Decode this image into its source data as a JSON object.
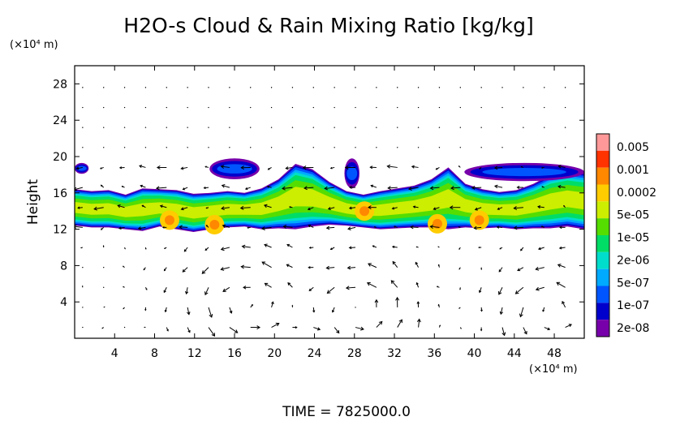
{
  "chart_data": {
    "type": "heatmap",
    "title": "H2O-s Cloud & Rain Mixing Ratio [kg/kg]",
    "ylabel": "Height",
    "xlabel": "",
    "y_unit": "(×10⁴ m)",
    "x_unit": "(×10⁴ m)",
    "xlim": [
      0,
      51
    ],
    "ylim": [
      0,
      30
    ],
    "xticks": [
      "4",
      "8",
      "12",
      "16",
      "20",
      "24",
      "28",
      "32",
      "36",
      "40",
      "44",
      "48"
    ],
    "yticks": [
      "4",
      "8",
      "12",
      "16",
      "20",
      "24",
      "28"
    ],
    "xtick_values": [
      4,
      8,
      12,
      16,
      20,
      24,
      28,
      32,
      36,
      40,
      44,
      48
    ],
    "ytick_values": [
      4,
      8,
      12,
      16,
      20,
      24,
      28
    ],
    "colorbar": {
      "labels": [
        "0.005",
        "0.001",
        "0.0002",
        "5e-05",
        "1e-05",
        "2e-06",
        "5e-07",
        "1e-07",
        "2e-08"
      ],
      "colors": [
        "#ff9999",
        "#ff3300",
        "#ff8800",
        "#ffcc00",
        "#ccee00",
        "#55dd00",
        "#00dd66",
        "#00ddcc",
        "#00aaff",
        "#0055ff",
        "#0000cc",
        "#7700aa"
      ]
    },
    "cloud_band": {
      "bottom": [
        12.4,
        12.2,
        12.2,
        12.0,
        11.8,
        12.3,
        12.0,
        11.7,
        12.0,
        12.2,
        12.3,
        12.0,
        12.1,
        12.0,
        12.3,
        12.5,
        12.4,
        12.2,
        12.0,
        12.1,
        12.2,
        12.2,
        12.0,
        12.2,
        12.1,
        12.2,
        12.0,
        12.1,
        12.1,
        12.3,
        12.0
      ],
      "top": [
        16.4,
        16.2,
        16.3,
        15.8,
        16.5,
        16.4,
        16.3,
        15.9,
        16.0,
        16.2,
        16.0,
        16.5,
        17.5,
        19.2,
        18.6,
        17.2,
        16.2,
        15.8,
        16.2,
        16.5,
        16.8,
        17.5,
        18.8,
        17.0,
        16.4,
        16.1,
        16.3,
        17.0,
        18.0,
        18.4,
        18.2
      ]
    },
    "anvils": [
      {
        "x": [
          0,
          1.4
        ],
        "y": [
          18.1,
          19.3
        ]
      },
      {
        "x": [
          13.5,
          18.5
        ],
        "y": [
          17.5,
          19.8
        ]
      },
      {
        "x": [
          27.0,
          28.5
        ],
        "y": [
          16.5,
          19.8
        ]
      },
      {
        "x": [
          39.0,
          51.0
        ],
        "y": [
          17.3,
          19.3
        ]
      }
    ],
    "hotspots": [
      {
        "x": 9.5,
        "y": 13.0,
        "level": "0.0002"
      },
      {
        "x": 14.0,
        "y": 12.5,
        "level": "0.0002"
      },
      {
        "x": 29.0,
        "y": 14.0,
        "level": "0.0002"
      },
      {
        "x": 36.3,
        "y": 12.6,
        "level": "0.0002"
      },
      {
        "x": 40.5,
        "y": 13.0,
        "level": "0.0002"
      }
    ],
    "circulation_cells": [
      {
        "x": 17.0,
        "y": 4.0
      },
      {
        "x": 28.5,
        "y": 3.0
      },
      {
        "x": 48.0,
        "y": 3.0
      }
    ]
  },
  "footer": {
    "time_label": "TIME  =  7825000.0"
  }
}
